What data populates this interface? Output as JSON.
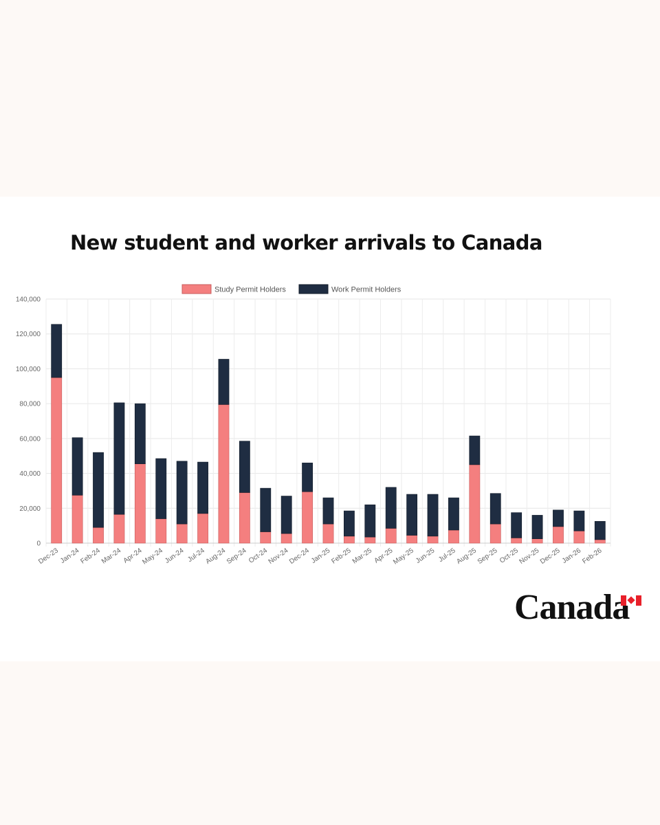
{
  "header": {
    "title": "New student and worker arrivals to Canada"
  },
  "branding": {
    "wordmark": "Canada",
    "flag_icon": "canada-flag-icon"
  },
  "chart_data": {
    "type": "bar",
    "stacked": true,
    "categories": [
      "Dec-23",
      "Jan-24",
      "Feb-24",
      "Mar-24",
      "Apr-24",
      "May-24",
      "Jun-24",
      "Jul-24",
      "Aug-24",
      "Sep-24",
      "Oct-24",
      "Nov-24",
      "Dec-24",
      "Jan-25",
      "Feb-25",
      "Mar-25",
      "Apr-25",
      "May-25",
      "Jun-25",
      "Jul-25",
      "Aug-25",
      "Sep-25",
      "Oct-25",
      "Nov-25",
      "Dec-25",
      "Jan-26",
      "Feb-26"
    ],
    "series": [
      {
        "name": "Study Permit Holders",
        "color": "#f47f7f",
        "values": [
          95000,
          27500,
          9000,
          16500,
          45500,
          14000,
          11000,
          17000,
          79500,
          29000,
          6500,
          5500,
          29500,
          11000,
          4000,
          3500,
          8500,
          4500,
          4000,
          7500,
          45000,
          11000,
          3000,
          2500,
          9500,
          7000,
          2000
        ]
      },
      {
        "name": "Work Permit Holders",
        "color": "#1f2d42",
        "values": [
          30500,
          33000,
          43000,
          64000,
          34500,
          34500,
          36000,
          29500,
          26000,
          29500,
          25000,
          21500,
          16500,
          15000,
          14500,
          18500,
          23500,
          23500,
          24000,
          18500,
          16500,
          17500,
          14500,
          13500,
          9500,
          11500,
          10500
        ]
      }
    ],
    "ylim": [
      0,
      140000
    ],
    "yticks": [
      "0",
      "20,000",
      "40,000",
      "60,000",
      "80,000",
      "100,000",
      "120,000",
      "140,000"
    ],
    "grid": true,
    "legend_position": "top-center",
    "xlabel": "",
    "ylabel": ""
  }
}
